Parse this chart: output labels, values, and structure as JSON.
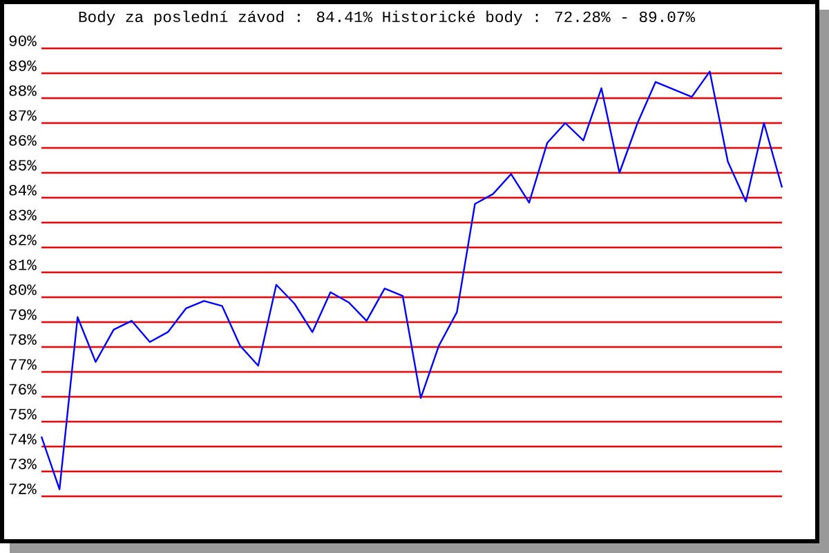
{
  "chart_data": {
    "type": "line",
    "title": "Body za poslední závod : 84.41%  Historické body : 72.28% - 89.07%",
    "categories": [
      null,
      null,
      null,
      null,
      null,
      null,
      null,
      null,
      null,
      null,
      null,
      null,
      null,
      null,
      null,
      null,
      null,
      null,
      null,
      null,
      null,
      null,
      null,
      null,
      null,
      null,
      null,
      null,
      null,
      null,
      null,
      null,
      null,
      null,
      null,
      null,
      null,
      null,
      null,
      null,
      null,
      null
    ],
    "series": [
      {
        "color": "#0000ff",
        "values": [
          74.4,
          72.28,
          79.2,
          77.4,
          78.7,
          79.05,
          78.2,
          78.6,
          79.55,
          79.85,
          79.65,
          78.05,
          77.25,
          80.5,
          79.75,
          78.6,
          80.2,
          79.8,
          79.05,
          80.35,
          80.05,
          75.95,
          78.05,
          79.4,
          83.75,
          84.15,
          84.95,
          83.8,
          86.2,
          87.0,
          86.3,
          88.4,
          85.0,
          87.0,
          88.65,
          88.35,
          88.05,
          89.07,
          85.45,
          83.85,
          87.0,
          84.41
        ]
      }
    ],
    "ylim": [
      72,
      90
    ],
    "yticks": [
      {
        "value": 72,
        "label": "72%"
      },
      {
        "value": 73,
        "label": "73%"
      },
      {
        "value": 74,
        "label": "74%"
      },
      {
        "value": 75,
        "label": "75%"
      },
      {
        "value": 76,
        "label": "76%"
      },
      {
        "value": 77,
        "label": "77%"
      },
      {
        "value": 78,
        "label": "78%"
      },
      {
        "value": 79,
        "label": "79%"
      },
      {
        "value": 80,
        "label": "80%"
      },
      {
        "value": 81,
        "label": "81%"
      },
      {
        "value": 82,
        "label": "82%"
      },
      {
        "value": 83,
        "label": "83%"
      },
      {
        "value": 84,
        "label": "84%"
      },
      {
        "value": 85,
        "label": "85%"
      },
      {
        "value": 86,
        "label": "86%"
      },
      {
        "value": 87,
        "label": "87%"
      },
      {
        "value": 88,
        "label": "88%"
      },
      {
        "value": 89,
        "label": "89%"
      },
      {
        "value": 90,
        "label": "90%"
      }
    ],
    "grid": "y"
  }
}
